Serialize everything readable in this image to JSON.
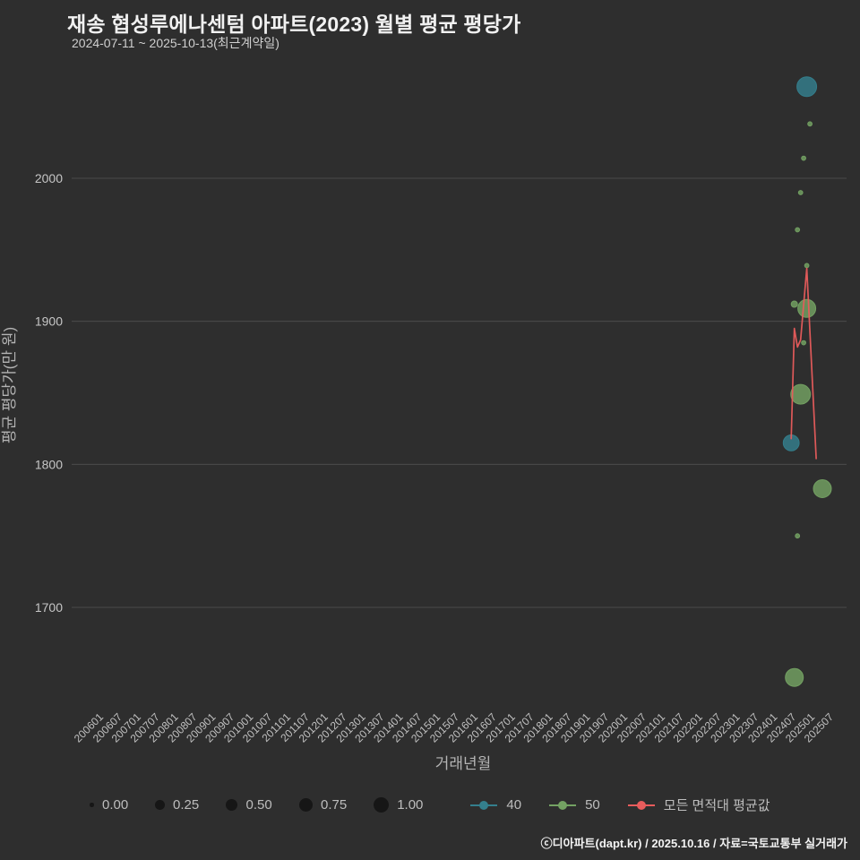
{
  "chart_data": {
    "type": "scatter",
    "title": "재송 협성루에나센텀 아파트(2023) 월별 평균 평당가",
    "subtitle": "2024-07-11 ~ 2025-10-13(최근계약일)",
    "xlabel": "거래년월",
    "ylabel": "평균 평당가(만 원)",
    "y_ticks": [
      1700,
      1800,
      1900,
      2000
    ],
    "ylim": [
      1600,
      2110
    ],
    "x_ticks": [
      "200601",
      "200607",
      "200701",
      "200707",
      "200801",
      "200807",
      "200901",
      "200907",
      "201001",
      "201007",
      "201101",
      "201107",
      "201201",
      "201207",
      "201301",
      "201307",
      "201401",
      "201407",
      "201501",
      "201507",
      "201601",
      "201607",
      "201701",
      "201707",
      "201801",
      "201807",
      "201901",
      "201907",
      "202001",
      "202007",
      "202101",
      "202107",
      "202201",
      "202207",
      "202301",
      "202307",
      "202401",
      "202407",
      "202501",
      "202507"
    ],
    "grid": "horizontal-only",
    "legend_position": "bottom",
    "colors": {
      "series_40": "#347f8d",
      "series_50": "#74a263",
      "avg_line": "#e85c5c",
      "legend_dot": "#161616"
    },
    "size_legend": [
      "0.00",
      "0.25",
      "0.50",
      "0.75",
      "1.00"
    ],
    "bubble_series": [
      {
        "name": "40",
        "color_key": "series_40",
        "points": [
          {
            "x": "202407",
            "y": 1815,
            "size": 0.72
          },
          {
            "x": "202412",
            "y": 2064,
            "size": 0.95
          }
        ]
      },
      {
        "name": "50",
        "color_key": "series_50",
        "points": [
          {
            "x": "202408",
            "y": 1912,
            "size": 0.14
          },
          {
            "x": "202408",
            "y": 1651,
            "size": 0.84
          },
          {
            "x": "202409",
            "y": 1964,
            "size": 0.02
          },
          {
            "x": "202409",
            "y": 1750,
            "size": 0.02
          },
          {
            "x": "202410",
            "y": 1990,
            "size": 0.02
          },
          {
            "x": "202410",
            "y": 1849,
            "size": 0.95
          },
          {
            "x": "202411",
            "y": 2014,
            "size": 0.02
          },
          {
            "x": "202411",
            "y": 1885,
            "size": 0.02
          },
          {
            "x": "202412",
            "y": 1909,
            "size": 0.84
          },
          {
            "x": "202412",
            "y": 1939,
            "size": 0.02
          },
          {
            "x": "202501",
            "y": 2038,
            "size": 0.02
          },
          {
            "x": "202505",
            "y": 1783,
            "size": 0.84
          }
        ]
      }
    ],
    "line_series": {
      "name": "모든 면적대 평균값",
      "color_key": "avg_line",
      "points": [
        {
          "x": "202407",
          "y": 1818
        },
        {
          "x": "202408",
          "y": 1895
        },
        {
          "x": "202409",
          "y": 1882
        },
        {
          "x": "202410",
          "y": 1887
        },
        {
          "x": "202412",
          "y": 1937
        },
        {
          "x": "202503",
          "y": 1804
        }
      ]
    }
  },
  "footer": {
    "credit": "ⓒ디아파트(dapt.kr) / 2025.10.16 / 자료=국토교통부 실거래가"
  }
}
